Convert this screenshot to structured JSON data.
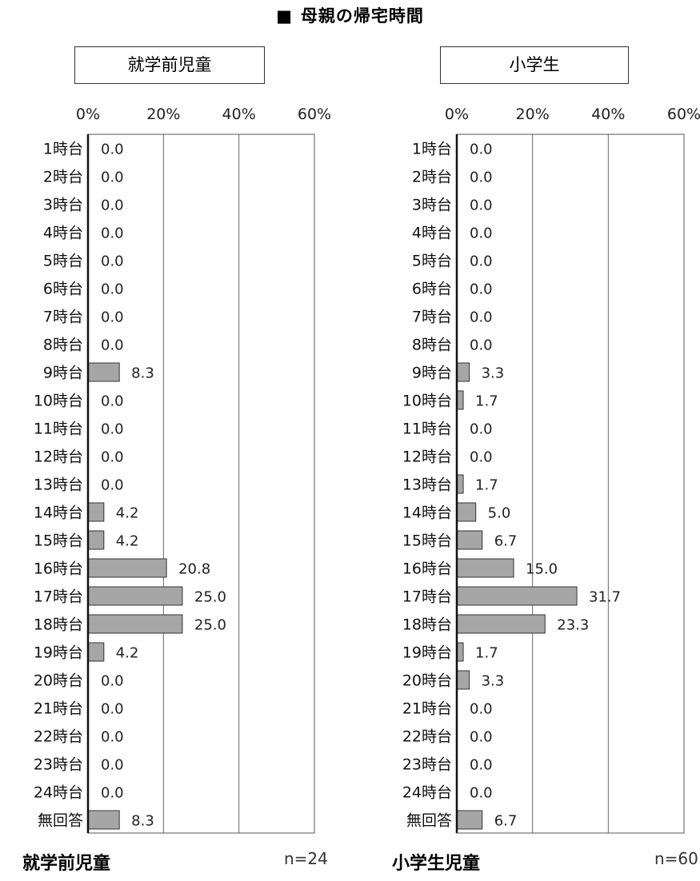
{
  "title": "母親の帰宅時間",
  "title_marker": "■",
  "chart_data": [
    {
      "type": "bar",
      "orientation": "horizontal",
      "panel_title": "就学前児童",
      "footer_title": "就学前児童",
      "n_label": "n=24",
      "xlim": [
        0,
        60
      ],
      "x_ticks": [
        "0%",
        "20%",
        "40%",
        "60%"
      ],
      "grid": true,
      "bar_color": "#a6a6a6",
      "categories": [
        "1時台",
        "2時台",
        "3時台",
        "4時台",
        "5時台",
        "6時台",
        "7時台",
        "8時台",
        "9時台",
        "10時台",
        "11時台",
        "12時台",
        "13時台",
        "14時台",
        "15時台",
        "16時台",
        "17時台",
        "18時台",
        "19時台",
        "20時台",
        "21時台",
        "22時台",
        "23時台",
        "24時台",
        "無回答"
      ],
      "values": [
        0.0,
        0.0,
        0.0,
        0.0,
        0.0,
        0.0,
        0.0,
        0.0,
        8.3,
        0.0,
        0.0,
        0.0,
        0.0,
        4.2,
        4.2,
        20.8,
        25.0,
        25.0,
        4.2,
        0.0,
        0.0,
        0.0,
        0.0,
        0.0,
        8.3
      ],
      "value_labels": [
        "0.0",
        "0.0",
        "0.0",
        "0.0",
        "0.0",
        "0.0",
        "0.0",
        "0.0",
        "8.3",
        "0.0",
        "0.0",
        "0.0",
        "0.0",
        "4.2",
        "4.2",
        "20.8",
        "25.0",
        "25.0",
        "4.2",
        "0.0",
        "0.0",
        "0.0",
        "0.0",
        "0.0",
        "8.3"
      ]
    },
    {
      "type": "bar",
      "orientation": "horizontal",
      "panel_title": "小学生",
      "footer_title": "小学生児童",
      "n_label": "n=60",
      "xlim": [
        0,
        60
      ],
      "x_ticks": [
        "0%",
        "20%",
        "40%",
        "60%"
      ],
      "grid": true,
      "bar_color": "#a6a6a6",
      "categories": [
        "1時台",
        "2時台",
        "3時台",
        "4時台",
        "5時台",
        "6時台",
        "7時台",
        "8時台",
        "9時台",
        "10時台",
        "11時台",
        "12時台",
        "13時台",
        "14時台",
        "15時台",
        "16時台",
        "17時台",
        "18時台",
        "19時台",
        "20時台",
        "21時台",
        "22時台",
        "23時台",
        "24時台",
        "無回答"
      ],
      "values": [
        0.0,
        0.0,
        0.0,
        0.0,
        0.0,
        0.0,
        0.0,
        0.0,
        3.3,
        1.7,
        0.0,
        0.0,
        1.7,
        5.0,
        6.7,
        15.0,
        31.7,
        23.3,
        1.7,
        3.3,
        0.0,
        0.0,
        0.0,
        0.0,
        6.7
      ],
      "value_labels": [
        "0.0",
        "0.0",
        "0.0",
        "0.0",
        "0.0",
        "0.0",
        "0.0",
        "0.0",
        "3.3",
        "1.7",
        "0.0",
        "0.0",
        "1.7",
        "5.0",
        "6.7",
        "15.0",
        "31.7",
        "23.3",
        "1.7",
        "3.3",
        "0.0",
        "0.0",
        "0.0",
        "0.0",
        "6.7"
      ]
    }
  ]
}
